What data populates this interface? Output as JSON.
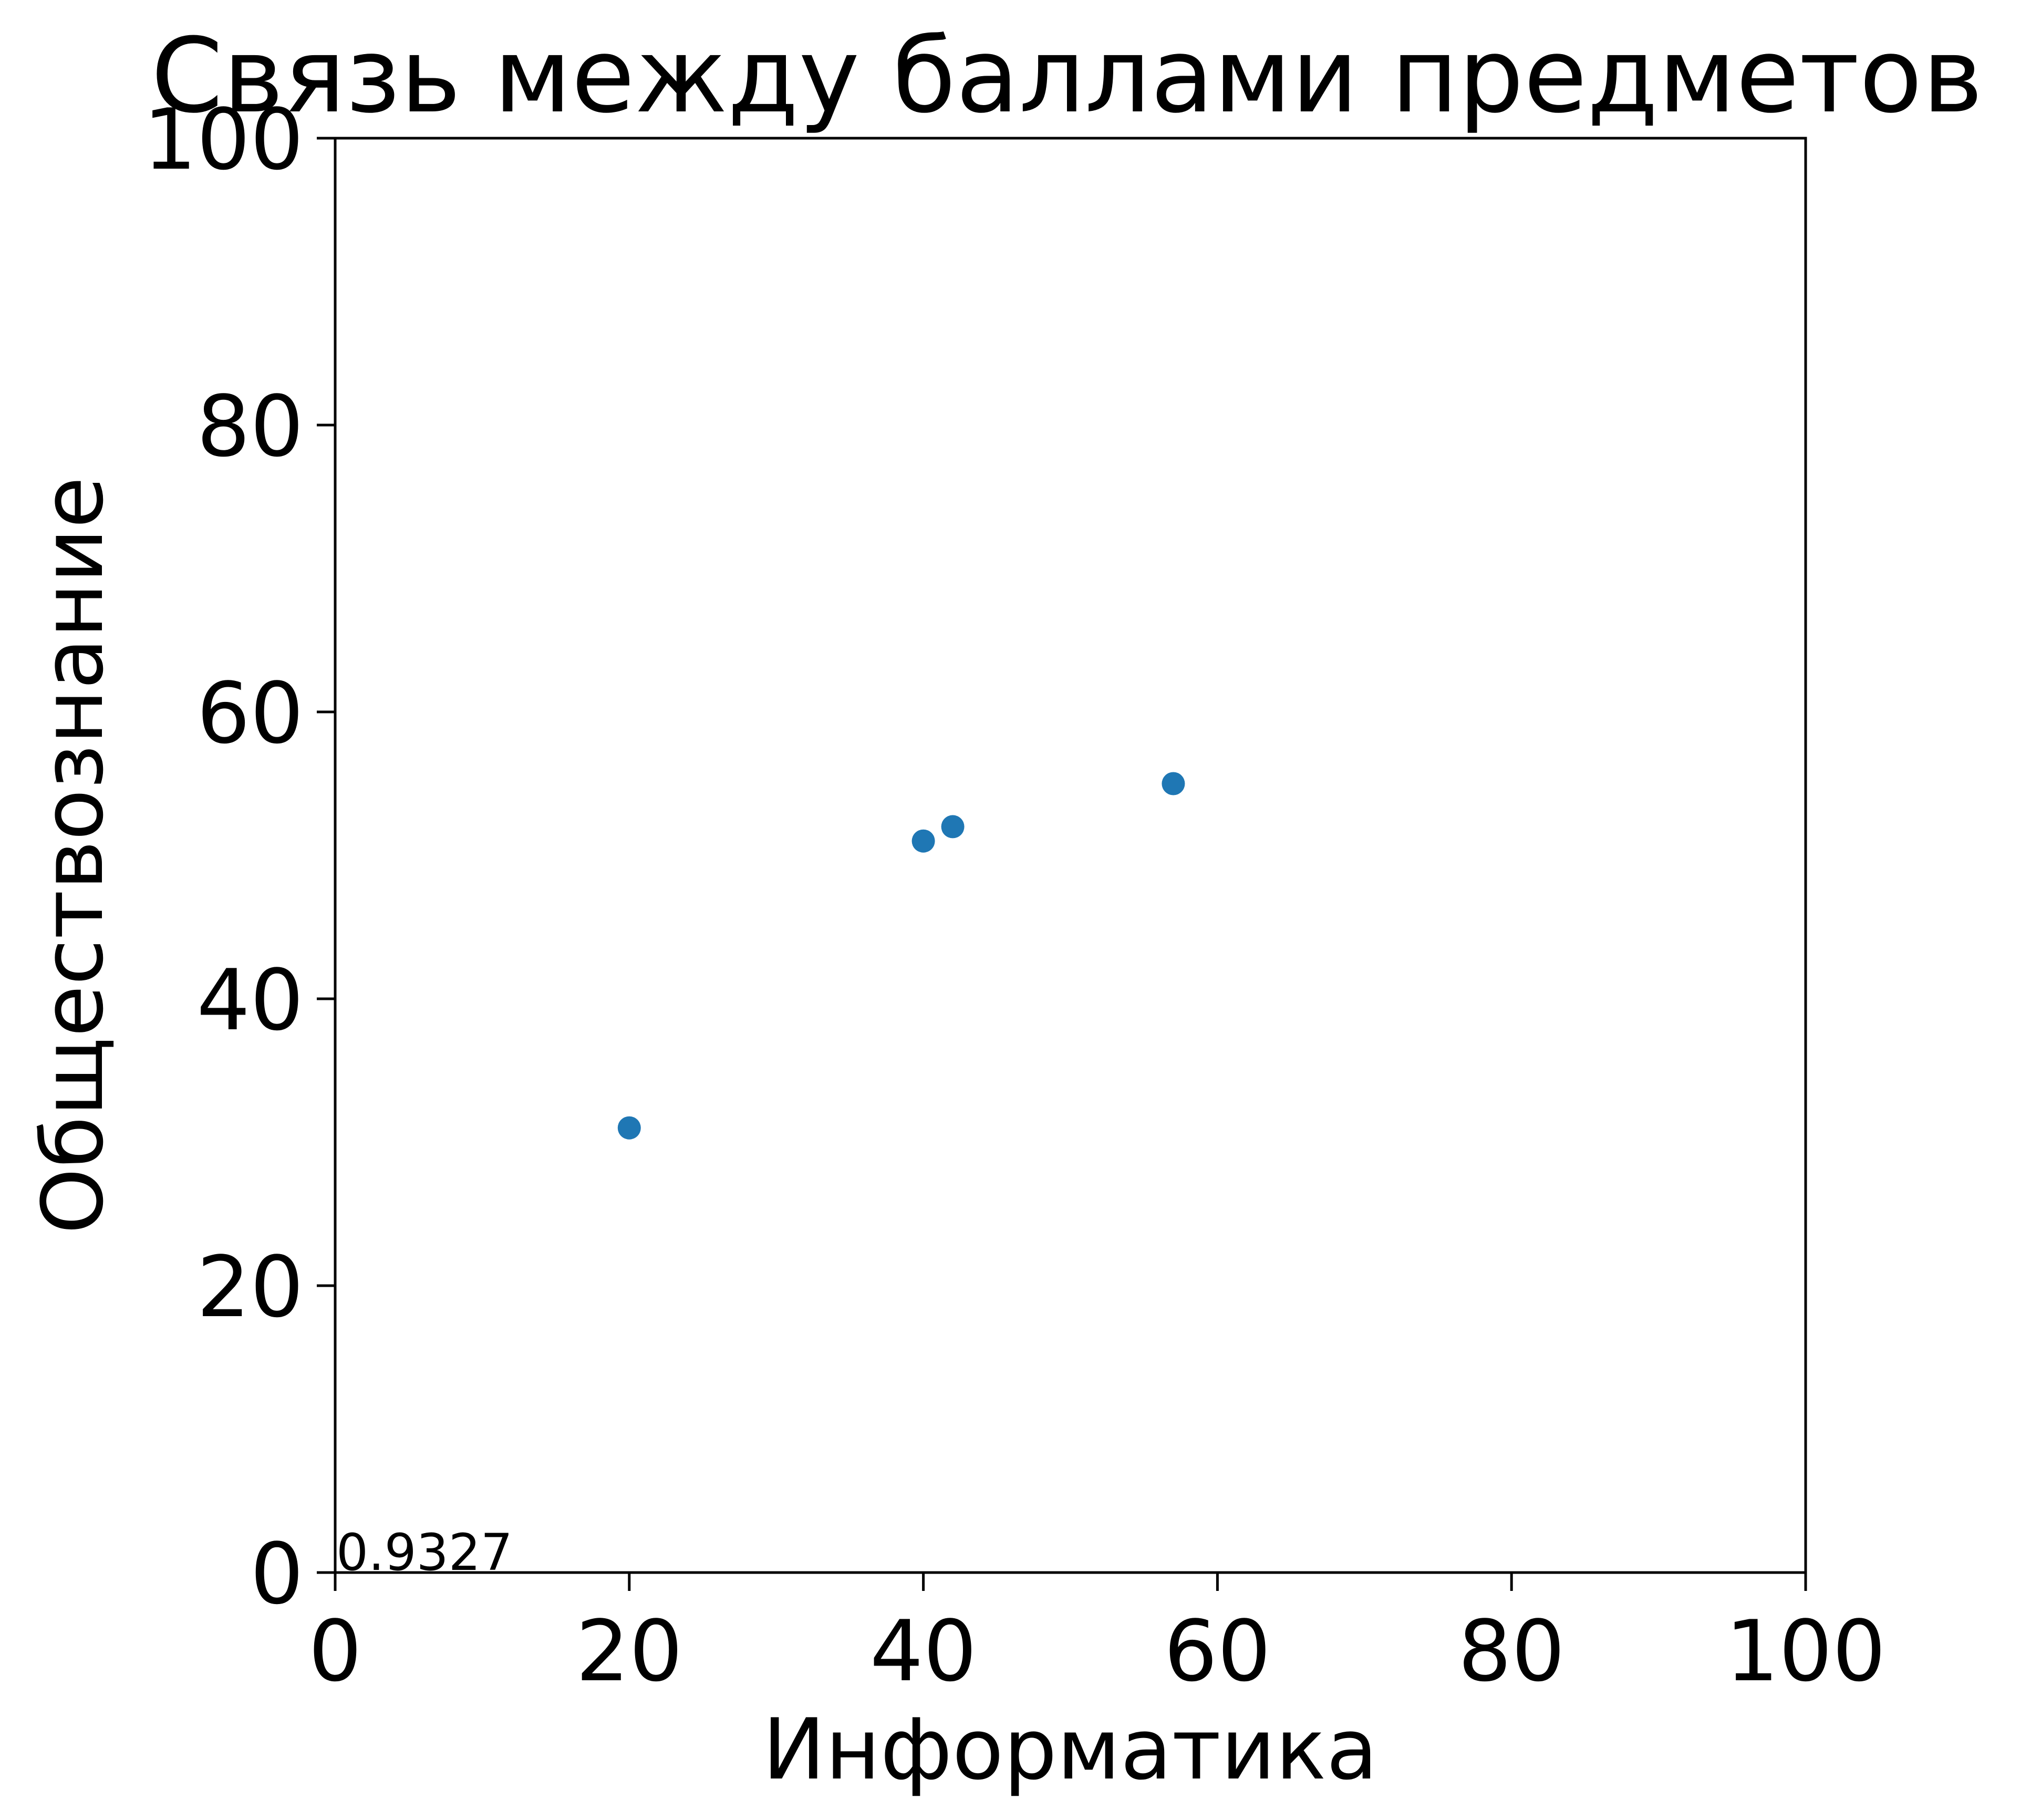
{
  "chart_data": {
    "type": "scatter",
    "title": "Связь между баллами предметов",
    "xlabel": "Информатика",
    "ylabel": "Обществознание",
    "xlim": [
      0,
      100
    ],
    "ylim": [
      0,
      100
    ],
    "x_ticks": [
      0,
      20,
      40,
      60,
      80,
      100
    ],
    "y_ticks": [
      0,
      20,
      40,
      60,
      80,
      100
    ],
    "x_tick_labels": [
      "0",
      "20",
      "40",
      "60",
      "80",
      "100"
    ],
    "y_tick_labels": [
      "0",
      "20",
      "40",
      "60",
      "80",
      "100"
    ],
    "grid": false,
    "legend": false,
    "series": [
      {
        "color": "#1f77b4",
        "points": [
          {
            "x": 20,
            "y": 31
          },
          {
            "x": 40,
            "y": 51
          },
          {
            "x": 42,
            "y": 52
          },
          {
            "x": 57,
            "y": 55
          }
        ]
      }
    ],
    "annotations": [
      {
        "text": "0.9327",
        "x": 0,
        "y": 0
      }
    ]
  }
}
